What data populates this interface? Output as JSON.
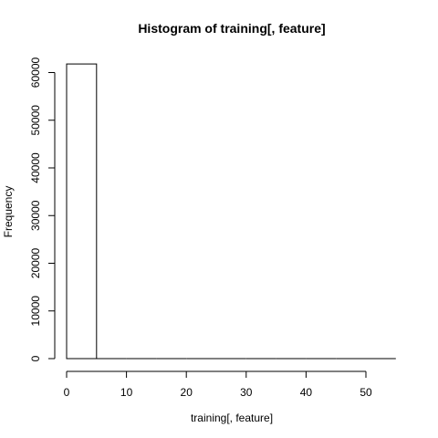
{
  "chart_data": {
    "type": "bar",
    "title": "Histogram of training[, feature]",
    "xlabel": "training[, feature]",
    "ylabel": "Frequency",
    "bin_width": 5,
    "bins": [
      {
        "x0": 0,
        "x1": 5,
        "count": 61800
      },
      {
        "x0": 5,
        "x1": 10,
        "count": 0
      },
      {
        "x0": 10,
        "x1": 15,
        "count": 0
      },
      {
        "x0": 15,
        "x1": 20,
        "count": 0
      },
      {
        "x0": 20,
        "x1": 25,
        "count": 0
      },
      {
        "x0": 25,
        "x1": 30,
        "count": 0
      },
      {
        "x0": 30,
        "x1": 35,
        "count": 0
      },
      {
        "x0": 35,
        "x1": 40,
        "count": 0
      },
      {
        "x0": 40,
        "x1": 45,
        "count": 0
      },
      {
        "x0": 45,
        "x1": 50,
        "count": 0
      },
      {
        "x0": 50,
        "x1": 55,
        "count": 0
      }
    ],
    "xlim": [
      0,
      55
    ],
    "ylim": [
      0,
      61800
    ],
    "x_ticks": [
      0,
      10,
      20,
      30,
      40,
      50
    ],
    "y_ticks": [
      0,
      10000,
      20000,
      30000,
      40000,
      50000,
      60000
    ],
    "grid": false,
    "legend": "none"
  }
}
